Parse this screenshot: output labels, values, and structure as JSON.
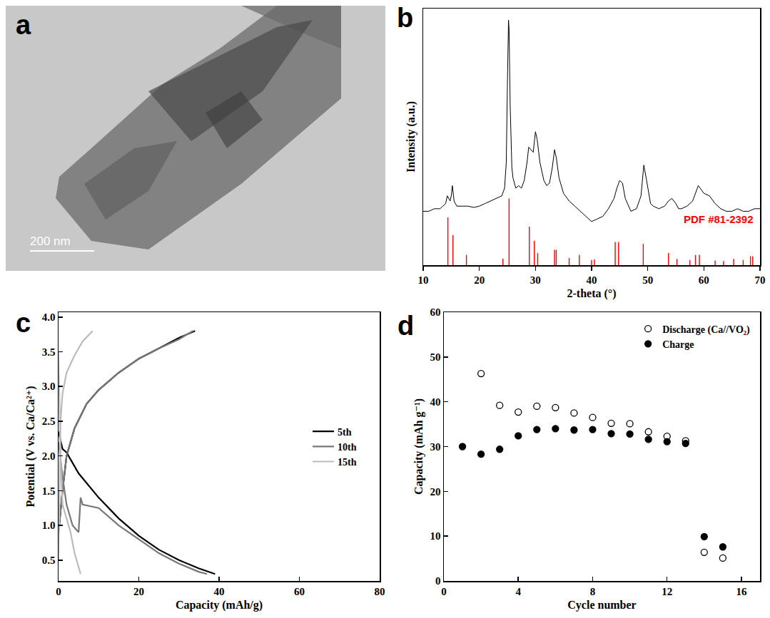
{
  "chart_data": [
    {
      "panel": "a",
      "type": "image",
      "annotations": [
        "200 nm"
      ]
    },
    {
      "panel": "b",
      "type": "line",
      "xlabel": "2-theta (°)",
      "ylabel": "Intensity (a.u.)",
      "xlim": [
        10,
        70
      ],
      "xticks": [
        10,
        20,
        30,
        40,
        50,
        60,
        70
      ],
      "ylim": [
        0,
        100
      ],
      "tick_labels": "x",
      "series": [
        {
          "type": "line",
          "color": "#000000",
          "x": [
            10,
            11,
            12,
            13,
            13.5,
            14,
            14.3,
            14.5,
            14.8,
            15,
            15.2,
            15.5,
            16,
            17,
            18,
            19,
            20,
            21,
            22,
            23,
            24,
            24.5,
            24.8,
            25,
            25.2,
            25.3,
            25.5,
            25.8,
            26,
            26.5,
            27,
            27.5,
            28,
            28.5,
            28.8,
            29.2,
            29.6,
            30,
            30.3,
            30.8,
            31.5,
            32,
            32.5,
            33,
            33.4,
            33.7,
            34.2,
            35,
            36,
            37,
            38,
            39,
            40,
            41,
            42,
            43,
            44,
            44.5,
            45,
            45.5,
            46,
            47,
            48,
            48.8,
            49.3,
            49.8,
            50.5,
            51,
            52,
            53,
            53.7,
            54.3,
            55,
            55.5,
            56,
            57,
            58,
            59,
            60,
            61,
            62,
            63,
            64,
            65,
            66,
            67,
            68,
            69,
            70
          ],
          "values": [
            21,
            21,
            22,
            22,
            23,
            24,
            27,
            26,
            25,
            27,
            31,
            25,
            23,
            23,
            23,
            22.5,
            23,
            24,
            25,
            26,
            27,
            30,
            40,
            70,
            95.5,
            92,
            62,
            38,
            34,
            30,
            31,
            30,
            33,
            40,
            46,
            45,
            44,
            52,
            49,
            40,
            33,
            31,
            32,
            38,
            45,
            42,
            34,
            28,
            25,
            23,
            21,
            19,
            17,
            18,
            19,
            22,
            26,
            30,
            33,
            32,
            26,
            21,
            22,
            27,
            39,
            33,
            24,
            23,
            22,
            23,
            25,
            26,
            24,
            22,
            22,
            23,
            25,
            31,
            28,
            27,
            24,
            22,
            21,
            21,
            22,
            21,
            21,
            22,
            22
          ]
        },
        {
          "name": "PDF #81-2392",
          "type": "bar",
          "color": "#ff0000",
          "x": [
            14.4,
            15.3,
            17.7,
            24.2,
            25.3,
            28.9,
            29.8,
            30.4,
            33.4,
            33.7,
            36,
            37.8,
            40,
            40.5,
            44.2,
            44.8,
            49.2,
            53.7,
            55.2,
            57.5,
            58.5,
            59.2,
            62,
            63.5,
            65.3,
            67,
            68.3,
            68.7
          ],
          "values": [
            18.6,
            11.7,
            4,
            2.5,
            26,
            15,
            9.5,
            4.7,
            6,
            6,
            2.8,
            4,
            2,
            2.2,
            9,
            9,
            8.3,
            4.7,
            2.4,
            2,
            4,
            4,
            1.8,
            1.6,
            2.4,
            2,
            3.5,
            3.5
          ]
        }
      ]
    },
    {
      "panel": "c",
      "type": "line",
      "xlabel": "Capacity (mAh/g)",
      "ylabel": "Potential (V vs. Ca/Ca²⁺)",
      "xlim": [
        0,
        80
      ],
      "xticks": [
        0,
        20,
        40,
        60,
        80
      ],
      "ylim": [
        0.2,
        4.07
      ],
      "yticks": [
        0.5,
        {
          "value": 1,
          "label": "1.0"
        },
        1.5,
        {
          "value": 2,
          "label": "2.0"
        },
        2.5,
        {
          "value": 3,
          "label": "3.0"
        },
        3.5,
        {
          "value": 4,
          "label": "4.0"
        }
      ],
      "legend": "right",
      "series": [
        {
          "name": "5th",
          "color": "#000000",
          "x": [
            0,
            1,
            2,
            5,
            10,
            15,
            20,
            25,
            30,
            35,
            39,
            null,
            0,
            1,
            2,
            4,
            7,
            10,
            15,
            20,
            25,
            30,
            34
          ],
          "values": [
            2.35,
            2.1,
            2.05,
            1.75,
            1.4,
            1.1,
            0.85,
            0.65,
            0.5,
            0.38,
            0.3,
            null,
            0.9,
            1.5,
            2.0,
            2.4,
            2.75,
            2.95,
            3.2,
            3.4,
            3.55,
            3.7,
            3.8
          ]
        },
        {
          "name": "10th",
          "color": "#777777",
          "x": [
            0,
            1,
            2,
            3.5,
            5,
            5.5,
            6,
            10,
            15,
            20,
            25,
            30,
            35,
            37,
            null,
            0,
            1,
            2,
            4,
            7,
            10,
            15,
            20,
            25,
            30,
            33.5
          ],
          "values": [
            2.2,
            1.7,
            1.3,
            1.0,
            0.9,
            1.4,
            1.3,
            1.25,
            1.0,
            0.8,
            0.6,
            0.45,
            0.33,
            0.3,
            null,
            0.9,
            1.5,
            2.0,
            2.4,
            2.75,
            2.95,
            3.2,
            3.4,
            3.55,
            3.68,
            3.8
          ]
        },
        {
          "name": "15th",
          "color": "#bbbbbb",
          "x": [
            0,
            0.5,
            1,
            2,
            3,
            4,
            5,
            5.5,
            null,
            0,
            0.5,
            1,
            2,
            4,
            6,
            8.5
          ],
          "values": [
            3.5,
            2.0,
            1.3,
            1.1,
            0.9,
            0.6,
            0.4,
            0.3,
            null,
            0.5,
            2.5,
            2.9,
            3.2,
            3.45,
            3.65,
            3.8
          ]
        }
      ]
    },
    {
      "panel": "d",
      "type": "scatter",
      "xlabel": "Cycle number",
      "ylabel": "Capacity (mAh g⁻¹)",
      "xlim": [
        0,
        17
      ],
      "xticks": [
        0,
        4,
        8,
        12,
        16
      ],
      "ylim": [
        0,
        60
      ],
      "yticks": [
        0,
        10,
        20,
        30,
        40,
        50,
        60
      ],
      "legend": "upper right",
      "series": [
        {
          "name": "Discharge (Ca//VO₂)",
          "marker": "open circle",
          "color": "#000000",
          "x": [
            2,
            3,
            4,
            5,
            6,
            7,
            8,
            9,
            10,
            11,
            12,
            13,
            14,
            15
          ],
          "values": [
            46.3,
            39.2,
            37.7,
            39,
            38.7,
            37.5,
            36.5,
            35.2,
            35.1,
            33.3,
            32.3,
            31.3,
            6.4,
            5.1
          ]
        },
        {
          "name": "Charge",
          "marker": "circle",
          "color": "#000000",
          "x": [
            1,
            2,
            3,
            4,
            5,
            6,
            7,
            8,
            9,
            10,
            11,
            12,
            13,
            14,
            15
          ],
          "values": [
            30,
            28.3,
            29.4,
            32.4,
            33.8,
            34,
            33.7,
            33.8,
            32.9,
            32.8,
            31.6,
            31.1,
            30.7,
            9.9,
            7.6
          ]
        }
      ]
    }
  ]
}
